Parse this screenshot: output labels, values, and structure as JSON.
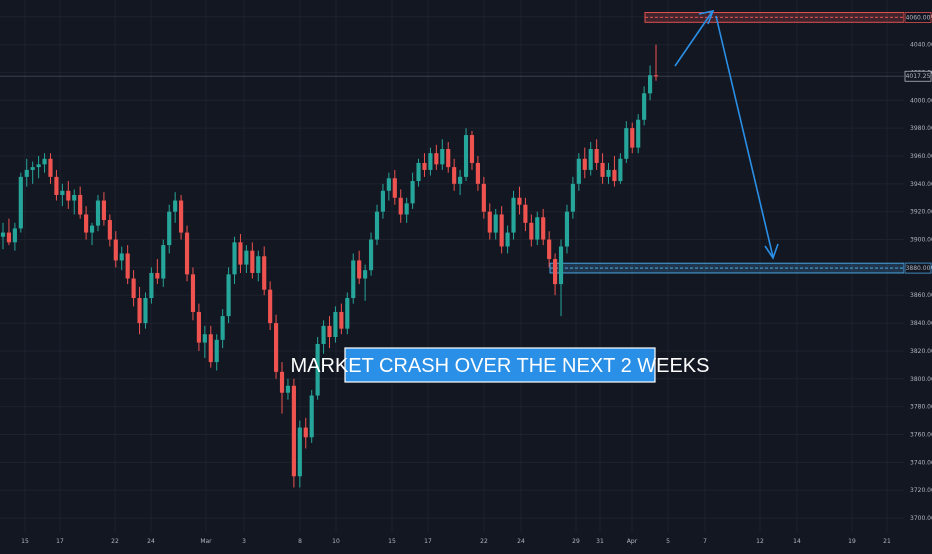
{
  "chart_data": {
    "type": "candlestick",
    "y_axis": {
      "ticks": [
        3700,
        3720,
        3740,
        3760,
        3780,
        3800,
        3820,
        3840,
        3860,
        3880,
        3900,
        3920,
        3940,
        3960,
        3980,
        4000,
        4020,
        4040,
        4060
      ],
      "tick_labels": [
        "3700.00",
        "3720.00",
        "3740.00",
        "3760.00",
        "3780.00",
        "3800.00",
        "3820.00",
        "3840.00",
        "3860.00",
        "3880.00",
        "3900.00",
        "3920.00",
        "3940.00",
        "3960.00",
        "3980.00",
        "4000.00",
        "4020.00",
        "4040.00",
        "4060.00"
      ],
      "range": [
        3690,
        4072
      ],
      "grid": true
    },
    "x_axis": {
      "tick_labels": [
        "15",
        "17",
        "22",
        "24",
        "Mar",
        "3",
        "8",
        "10",
        "15",
        "17",
        "22",
        "24",
        "29",
        "31",
        "Apr",
        "5",
        "7",
        "12",
        "14",
        "19",
        "21"
      ],
      "grid": true
    },
    "last_price": "4017.25",
    "resistance_zone": {
      "price": 4060,
      "label": "4060.00",
      "range": [
        4056,
        4063
      ],
      "color": "#e05252"
    },
    "support_zone": {
      "price": 3880,
      "label": "3880.00",
      "range": [
        3876,
        3883
      ],
      "color": "#4aa3df"
    },
    "colors": {
      "up": "#26a69a",
      "down": "#ef5350",
      "background": "#131722",
      "grid": "#1e222d",
      "arrow": "#2a8fe6"
    },
    "annotation": "MARKET CRASH OVER THE NEXT 2 WEEKS",
    "candles": [
      {
        "o": 3902,
        "h": 3912,
        "l": 3893,
        "c": 3905
      },
      {
        "o": 3905,
        "h": 3915,
        "l": 3896,
        "c": 3898
      },
      {
        "o": 3898,
        "h": 3912,
        "l": 3892,
        "c": 3908
      },
      {
        "o": 3908,
        "h": 3948,
        "l": 3905,
        "c": 3945
      },
      {
        "o": 3945,
        "h": 3958,
        "l": 3938,
        "c": 3950
      },
      {
        "o": 3950,
        "h": 3956,
        "l": 3940,
        "c": 3952
      },
      {
        "o": 3952,
        "h": 3960,
        "l": 3944,
        "c": 3954
      },
      {
        "o": 3954,
        "h": 3962,
        "l": 3948,
        "c": 3958
      },
      {
        "o": 3958,
        "h": 3962,
        "l": 3940,
        "c": 3945
      },
      {
        "o": 3945,
        "h": 3950,
        "l": 3928,
        "c": 3932
      },
      {
        "o": 3932,
        "h": 3940,
        "l": 3924,
        "c": 3935
      },
      {
        "o": 3935,
        "h": 3942,
        "l": 3922,
        "c": 3928
      },
      {
        "o": 3928,
        "h": 3936,
        "l": 3918,
        "c": 3932
      },
      {
        "o": 3932,
        "h": 3938,
        "l": 3915,
        "c": 3918
      },
      {
        "o": 3918,
        "h": 3924,
        "l": 3900,
        "c": 3905
      },
      {
        "o": 3905,
        "h": 3912,
        "l": 3896,
        "c": 3910
      },
      {
        "o": 3910,
        "h": 3932,
        "l": 3906,
        "c": 3928
      },
      {
        "o": 3928,
        "h": 3934,
        "l": 3910,
        "c": 3914
      },
      {
        "o": 3914,
        "h": 3918,
        "l": 3895,
        "c": 3900
      },
      {
        "o": 3900,
        "h": 3906,
        "l": 3880,
        "c": 3885
      },
      {
        "o": 3885,
        "h": 3895,
        "l": 3878,
        "c": 3890
      },
      {
        "o": 3890,
        "h": 3896,
        "l": 3868,
        "c": 3872
      },
      {
        "o": 3872,
        "h": 3878,
        "l": 3852,
        "c": 3858
      },
      {
        "o": 3858,
        "h": 3866,
        "l": 3832,
        "c": 3840
      },
      {
        "o": 3840,
        "h": 3862,
        "l": 3836,
        "c": 3858
      },
      {
        "o": 3858,
        "h": 3880,
        "l": 3854,
        "c": 3876
      },
      {
        "o": 3876,
        "h": 3886,
        "l": 3868,
        "c": 3872
      },
      {
        "o": 3872,
        "h": 3900,
        "l": 3866,
        "c": 3896
      },
      {
        "o": 3896,
        "h": 3925,
        "l": 3890,
        "c": 3920
      },
      {
        "o": 3920,
        "h": 3934,
        "l": 3912,
        "c": 3928
      },
      {
        "o": 3928,
        "h": 3932,
        "l": 3900,
        "c": 3905
      },
      {
        "o": 3905,
        "h": 3910,
        "l": 3870,
        "c": 3875
      },
      {
        "o": 3875,
        "h": 3880,
        "l": 3842,
        "c": 3848
      },
      {
        "o": 3848,
        "h": 3854,
        "l": 3820,
        "c": 3826
      },
      {
        "o": 3826,
        "h": 3838,
        "l": 3815,
        "c": 3832
      },
      {
        "o": 3832,
        "h": 3838,
        "l": 3808,
        "c": 3812
      },
      {
        "o": 3812,
        "h": 3832,
        "l": 3806,
        "c": 3828
      },
      {
        "o": 3828,
        "h": 3850,
        "l": 3822,
        "c": 3845
      },
      {
        "o": 3845,
        "h": 3880,
        "l": 3840,
        "c": 3875
      },
      {
        "o": 3875,
        "h": 3902,
        "l": 3868,
        "c": 3898
      },
      {
        "o": 3898,
        "h": 3904,
        "l": 3876,
        "c": 3882
      },
      {
        "o": 3882,
        "h": 3896,
        "l": 3876,
        "c": 3892
      },
      {
        "o": 3892,
        "h": 3898,
        "l": 3872,
        "c": 3876
      },
      {
        "o": 3876,
        "h": 3892,
        "l": 3870,
        "c": 3888
      },
      {
        "o": 3888,
        "h": 3895,
        "l": 3860,
        "c": 3864
      },
      {
        "o": 3864,
        "h": 3870,
        "l": 3835,
        "c": 3840
      },
      {
        "o": 3840,
        "h": 3846,
        "l": 3800,
        "c": 3805
      },
      {
        "o": 3805,
        "h": 3812,
        "l": 3775,
        "c": 3790
      },
      {
        "o": 3790,
        "h": 3800,
        "l": 3785,
        "c": 3795
      },
      {
        "o": 3795,
        "h": 3800,
        "l": 3722,
        "c": 3730
      },
      {
        "o": 3730,
        "h": 3770,
        "l": 3722,
        "c": 3765
      },
      {
        "o": 3765,
        "h": 3772,
        "l": 3750,
        "c": 3758
      },
      {
        "o": 3758,
        "h": 3792,
        "l": 3754,
        "c": 3788
      },
      {
        "o": 3788,
        "h": 3830,
        "l": 3785,
        "c": 3825
      },
      {
        "o": 3825,
        "h": 3842,
        "l": 3818,
        "c": 3838
      },
      {
        "o": 3838,
        "h": 3845,
        "l": 3822,
        "c": 3830
      },
      {
        "o": 3830,
        "h": 3852,
        "l": 3826,
        "c": 3848
      },
      {
        "o": 3848,
        "h": 3854,
        "l": 3832,
        "c": 3836
      },
      {
        "o": 3836,
        "h": 3862,
        "l": 3832,
        "c": 3858
      },
      {
        "o": 3858,
        "h": 3890,
        "l": 3854,
        "c": 3885
      },
      {
        "o": 3885,
        "h": 3892,
        "l": 3868,
        "c": 3872
      },
      {
        "o": 3872,
        "h": 3882,
        "l": 3856,
        "c": 3878
      },
      {
        "o": 3878,
        "h": 3905,
        "l": 3874,
        "c": 3900
      },
      {
        "o": 3900,
        "h": 3925,
        "l": 3896,
        "c": 3920
      },
      {
        "o": 3920,
        "h": 3940,
        "l": 3915,
        "c": 3935
      },
      {
        "o": 3935,
        "h": 3948,
        "l": 3928,
        "c": 3944
      },
      {
        "o": 3944,
        "h": 3950,
        "l": 3925,
        "c": 3930
      },
      {
        "o": 3930,
        "h": 3936,
        "l": 3912,
        "c": 3918
      },
      {
        "o": 3918,
        "h": 3930,
        "l": 3912,
        "c": 3926
      },
      {
        "o": 3926,
        "h": 3948,
        "l": 3922,
        "c": 3942
      },
      {
        "o": 3942,
        "h": 3958,
        "l": 3938,
        "c": 3955
      },
      {
        "o": 3955,
        "h": 3962,
        "l": 3945,
        "c": 3950
      },
      {
        "o": 3950,
        "h": 3966,
        "l": 3946,
        "c": 3962
      },
      {
        "o": 3962,
        "h": 3968,
        "l": 3950,
        "c": 3954
      },
      {
        "o": 3954,
        "h": 3972,
        "l": 3950,
        "c": 3965
      },
      {
        "o": 3965,
        "h": 3970,
        "l": 3948,
        "c": 3952
      },
      {
        "o": 3952,
        "h": 3958,
        "l": 3935,
        "c": 3940
      },
      {
        "o": 3940,
        "h": 3950,
        "l": 3932,
        "c": 3945
      },
      {
        "o": 3945,
        "h": 3980,
        "l": 3942,
        "c": 3975
      },
      {
        "o": 3975,
        "h": 3978,
        "l": 3950,
        "c": 3955
      },
      {
        "o": 3955,
        "h": 3960,
        "l": 3935,
        "c": 3940
      },
      {
        "o": 3940,
        "h": 3945,
        "l": 3915,
        "c": 3920
      },
      {
        "o": 3920,
        "h": 3926,
        "l": 3900,
        "c": 3905
      },
      {
        "o": 3905,
        "h": 3922,
        "l": 3900,
        "c": 3918
      },
      {
        "o": 3918,
        "h": 3924,
        "l": 3890,
        "c": 3895
      },
      {
        "o": 3895,
        "h": 3910,
        "l": 3890,
        "c": 3905
      },
      {
        "o": 3905,
        "h": 3935,
        "l": 3900,
        "c": 3930
      },
      {
        "o": 3930,
        "h": 3938,
        "l": 3918,
        "c": 3925
      },
      {
        "o": 3925,
        "h": 3930,
        "l": 3906,
        "c": 3912
      },
      {
        "o": 3912,
        "h": 3918,
        "l": 3895,
        "c": 3900
      },
      {
        "o": 3900,
        "h": 3920,
        "l": 3896,
        "c": 3916
      },
      {
        "o": 3916,
        "h": 3922,
        "l": 3896,
        "c": 3900
      },
      {
        "o": 3900,
        "h": 3906,
        "l": 3880,
        "c": 3886
      },
      {
        "o": 3886,
        "h": 3890,
        "l": 3860,
        "c": 3868
      },
      {
        "o": 3868,
        "h": 3900,
        "l": 3845,
        "c": 3895
      },
      {
        "o": 3895,
        "h": 3925,
        "l": 3890,
        "c": 3920
      },
      {
        "o": 3920,
        "h": 3945,
        "l": 3915,
        "c": 3940
      },
      {
        "o": 3940,
        "h": 3962,
        "l": 3935,
        "c": 3958
      },
      {
        "o": 3958,
        "h": 3966,
        "l": 3944,
        "c": 3950
      },
      {
        "o": 3950,
        "h": 3970,
        "l": 3946,
        "c": 3965
      },
      {
        "o": 3965,
        "h": 3972,
        "l": 3950,
        "c": 3955
      },
      {
        "o": 3955,
        "h": 3962,
        "l": 3940,
        "c": 3945
      },
      {
        "o": 3945,
        "h": 3955,
        "l": 3940,
        "c": 3950
      },
      {
        "o": 3950,
        "h": 3960,
        "l": 3938,
        "c": 3942
      },
      {
        "o": 3942,
        "h": 3962,
        "l": 3940,
        "c": 3958
      },
      {
        "o": 3958,
        "h": 3985,
        "l": 3955,
        "c": 3980
      },
      {
        "o": 3980,
        "h": 3984,
        "l": 3962,
        "c": 3966
      },
      {
        "o": 3966,
        "h": 3990,
        "l": 3962,
        "c": 3986
      },
      {
        "o": 3986,
        "h": 4010,
        "l": 3982,
        "c": 4005
      },
      {
        "o": 4005,
        "h": 4025,
        "l": 4000,
        "c": 4018
      },
      {
        "o": 4018,
        "h": 4040,
        "l": 4014,
        "c": 4017.25
      }
    ]
  }
}
